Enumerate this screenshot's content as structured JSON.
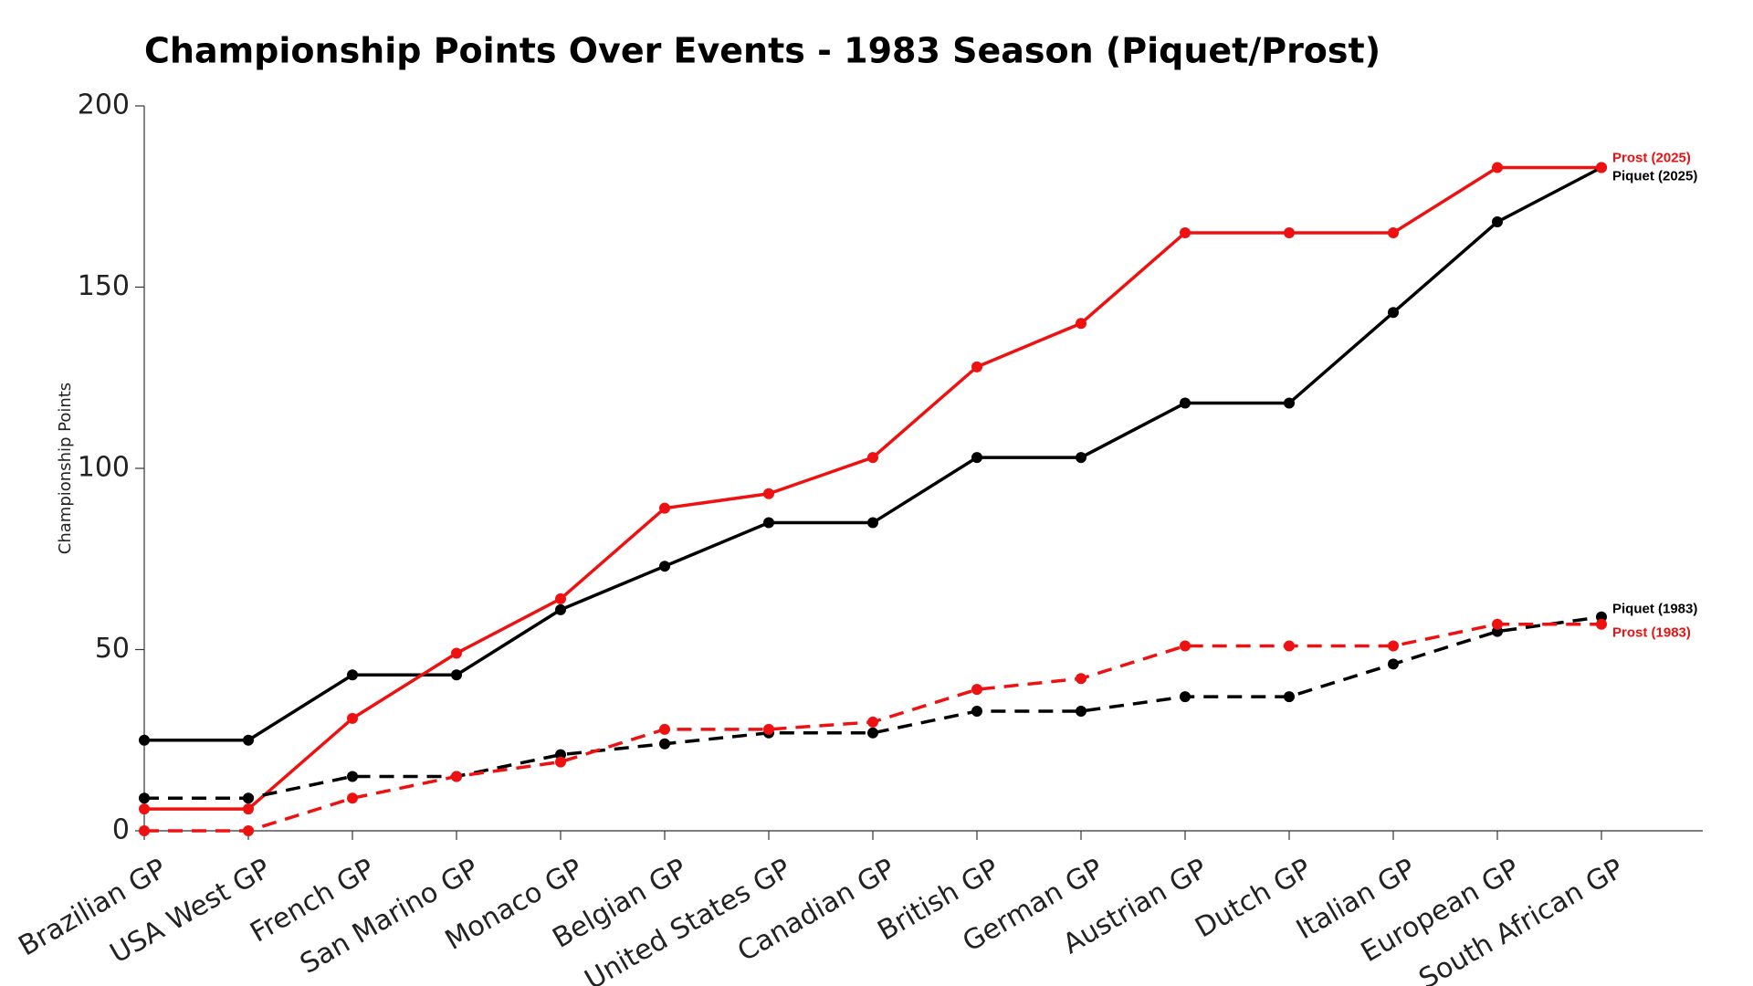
{
  "chart_data": {
    "type": "line",
    "title": "Championship Points Over Events - 1983 Season (Piquet/Prost)",
    "y_label": "Championship Points",
    "categories": [
      "Brazilian GP",
      "USA West GP",
      "French GP",
      "San Marino GP",
      "Monaco GP",
      "Belgian GP",
      "United States GP",
      "Canadian GP",
      "British GP",
      "German GP",
      "Austrian GP",
      "Dutch GP",
      "Italian GP",
      "European GP",
      "South African GP"
    ],
    "ylim": [
      0,
      200
    ],
    "yticks": [
      0,
      50,
      100,
      150,
      200
    ],
    "series": [
      {
        "name": "Piquet (2025)",
        "color": "#000000",
        "style": "solid",
        "values": [
          25,
          25,
          43,
          43,
          61,
          73,
          85,
          85,
          103,
          103,
          118,
          118,
          143,
          168,
          183
        ]
      },
      {
        "name": "Prost (2025)",
        "color": "#ee1111",
        "style": "solid",
        "values": [
          6,
          6,
          31,
          49,
          64,
          89,
          93,
          103,
          128,
          140,
          165,
          165,
          165,
          183,
          183
        ]
      },
      {
        "name": "Piquet (1983)",
        "color": "#000000",
        "style": "dashed",
        "values": [
          9,
          9,
          15,
          15,
          21,
          24,
          27,
          27,
          33,
          33,
          37,
          37,
          46,
          55,
          59
        ]
      },
      {
        "name": "Prost (1983)",
        "color": "#ee1111",
        "style": "dashed",
        "values": [
          0,
          0,
          9,
          15,
          19,
          28,
          28,
          30,
          39,
          42,
          51,
          51,
          51,
          57,
          57
        ]
      }
    ]
  }
}
